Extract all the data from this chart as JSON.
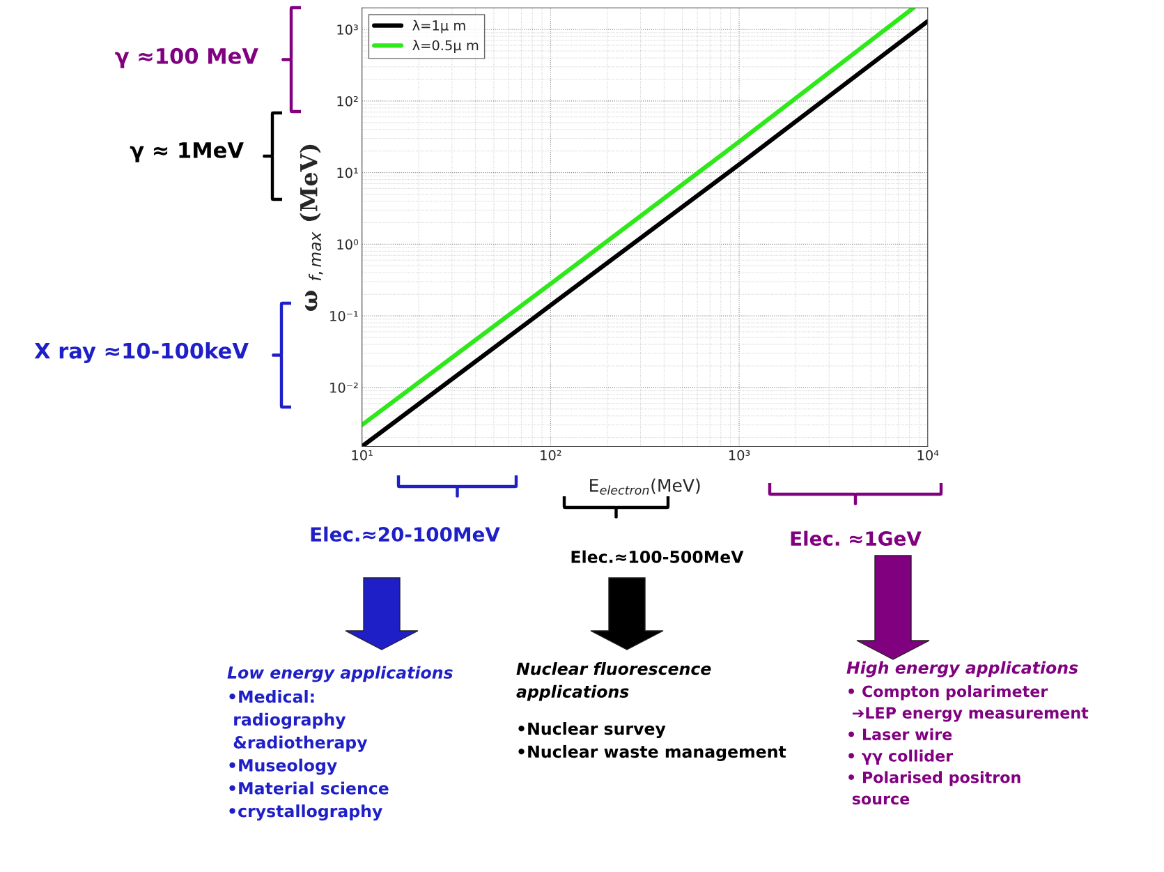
{
  "chart_data": {
    "type": "line",
    "log": "xy",
    "grid": true,
    "legend": "top left",
    "xlabel": "E$_{electron}$(MeV)",
    "ylabel": "ω $_{f,max}$ (MeV)",
    "xlim": [
      10,
      10000
    ],
    "ylim": [
      0.0015,
      2000
    ],
    "xticks": [
      {
        "value": 10,
        "label": "10¹"
      },
      {
        "value": 100,
        "label": "10²"
      },
      {
        "value": 1000,
        "label": "10³"
      },
      {
        "value": 10000,
        "label": "10⁴"
      }
    ],
    "yticks": [
      {
        "value": 0.01,
        "label": "10⁻²"
      },
      {
        "value": 0.1,
        "label": "10⁻¹"
      },
      {
        "value": 1,
        "label": "10⁰"
      },
      {
        "value": 10,
        "label": "10¹"
      },
      {
        "value": 100,
        "label": "10²"
      },
      {
        "value": 1000,
        "label": "10³"
      }
    ],
    "series": [
      {
        "name": "λ=1μ m",
        "color": "#000000",
        "x": [
          10,
          100,
          1000,
          10000
        ],
        "values": [
          0.0015,
          0.14,
          13,
          1300
        ]
      },
      {
        "name": "λ=0.5μ m",
        "color": "#2ee81a",
        "x": [
          10,
          100,
          1000,
          8400
        ],
        "values": [
          0.003,
          0.28,
          27,
          2000
        ]
      }
    ],
    "annotations": [
      "γ ≈100 MeV",
      "γ ≈ 1MeV",
      "X ray ≈10-100keV",
      "Elec.≈20-100MeV",
      "Elec.≈100-500MeV",
      "Elec. ≈1GeV",
      "Low energy applications",
      "•Medical:\n radiography\n &radiotherapy\n•Museology\n•Material science\n•crystallography",
      "Nuclear fluorescence \napplications",
      "•Nuclear survey\n•Nuclear waste management",
      "High energy applications",
      "• Compton polarimeter\n ➔LEP energy measurement\n• Laser wire\n• γγ collider\n• Polarised positron\n source"
    ]
  }
}
